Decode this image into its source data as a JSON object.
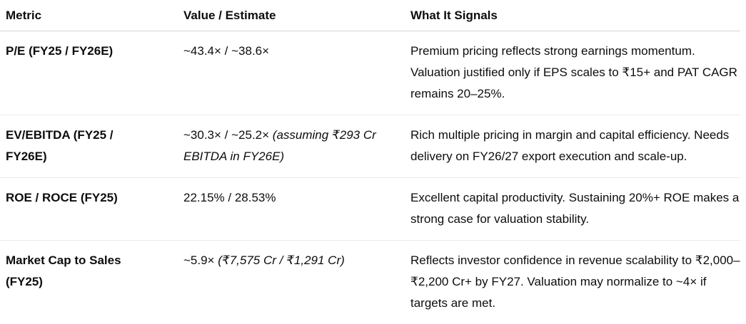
{
  "table": {
    "columns": {
      "metric": "Metric",
      "value": "Value / Estimate",
      "signals": "What It Signals"
    },
    "rows": [
      {
        "metric": "P/E (FY25 / FY26E)",
        "value": "~43.4× / ~38.6×",
        "value_note": "",
        "signals": "Premium pricing reflects strong earnings momentum. Valuation justified only if EPS scales to ₹15+ and PAT CAGR remains 20–25%."
      },
      {
        "metric": "EV/EBITDA (FY25 / FY26E)",
        "value": "~30.3× / ~25.2×",
        "value_note": "(assuming ₹293 Cr EBITDA in FY26E)",
        "signals": "Rich multiple pricing in margin and capital efficiency. Needs delivery on FY26/27 export execution and scale-up."
      },
      {
        "metric": "ROE / ROCE (FY25)",
        "value": "22.15% / 28.53%",
        "value_note": "",
        "signals": "Excellent capital productivity. Sustaining 20%+ ROE makes a strong case for valuation stability."
      },
      {
        "metric": "Market Cap to Sales\n(FY25)",
        "value": "~5.9×",
        "value_note": "(₹7,575 Cr / ₹1,291 Cr)",
        "signals": "Reflects investor confidence in revenue scalability to ₹2,000–₹2,200 Cr+ by FY27. Valuation may normalize to ~4× if targets are met."
      }
    ]
  },
  "colors": {
    "text": "#0d0d0d",
    "header_border": "#d4d4d4",
    "row_border": "#ececec",
    "background": "#ffffff"
  }
}
